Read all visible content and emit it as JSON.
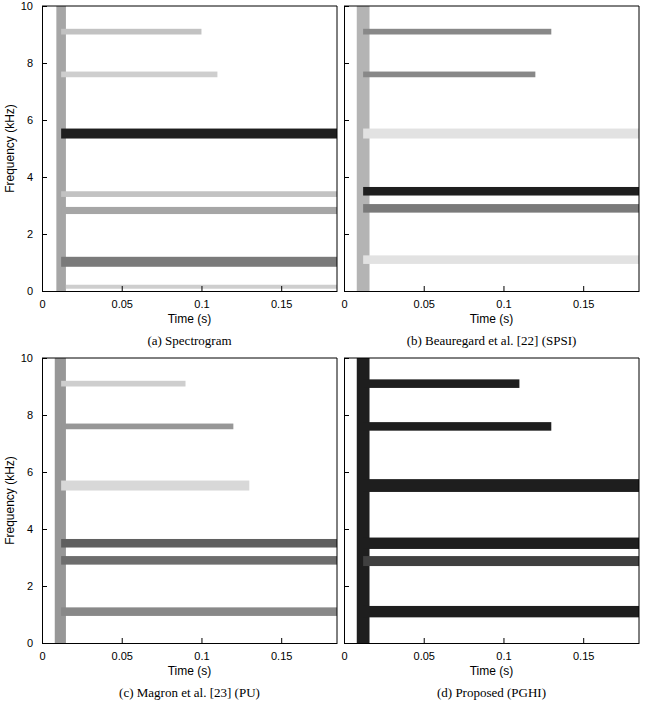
{
  "chart_data": [
    {
      "type": "spectrogram",
      "title": "(a) Spectrogram",
      "xlabel": "Time (s)",
      "ylabel": "Frequency (kHz)",
      "xlim": [
        0,
        0.185
      ],
      "ylim": [
        0,
        10
      ],
      "xticks": [
        0,
        0.05,
        0.1,
        0.15
      ],
      "yticks": [
        0,
        2,
        4,
        6,
        8,
        10
      ],
      "bands": [
        {
          "start": 0.009,
          "end": 0.015,
          "f0": 0,
          "f1": 10,
          "value": 0.45
        },
        {
          "start": 0.012,
          "end": 0.185,
          "f0": 0.85,
          "f1": 1.2,
          "value": 0.6
        },
        {
          "start": 0.012,
          "end": 0.185,
          "f0": 2.7,
          "f1": 2.95,
          "value": 0.45
        },
        {
          "start": 0.012,
          "end": 0.185,
          "f0": 3.3,
          "f1": 3.5,
          "value": 0.35
        },
        {
          "start": 0.012,
          "end": 0.185,
          "f0": 5.35,
          "f1": 5.7,
          "value": 0.9
        },
        {
          "start": 0.012,
          "end": 0.11,
          "f0": 7.5,
          "f1": 7.7,
          "value": 0.3
        },
        {
          "start": 0.012,
          "end": 0.1,
          "f0": 9.0,
          "f1": 9.2,
          "value": 0.35
        },
        {
          "start": 0.015,
          "end": 0.185,
          "f0": 0.08,
          "f1": 0.22,
          "value": 0.3
        }
      ]
    },
    {
      "type": "spectrogram",
      "title": "(b) Beauregard et al. [22] (SPSI)",
      "xlabel": "Time (s)",
      "xlim": [
        0,
        0.185
      ],
      "ylim": [
        0,
        10
      ],
      "xticks": [
        0,
        0.05,
        0.1,
        0.15
      ],
      "yticks": [
        0,
        2,
        4,
        6,
        8,
        10
      ],
      "tick_labels": "x",
      "bands": [
        {
          "start": 0.008,
          "end": 0.016,
          "f0": 0,
          "f1": 10,
          "value": 0.4
        },
        {
          "start": 0.012,
          "end": 0.185,
          "f0": 0.95,
          "f1": 1.25,
          "value": 0.2
        },
        {
          "start": 0.012,
          "end": 0.185,
          "f0": 2.75,
          "f1": 3.05,
          "value": 0.6
        },
        {
          "start": 0.012,
          "end": 0.185,
          "f0": 3.35,
          "f1": 3.65,
          "value": 0.9
        },
        {
          "start": 0.012,
          "end": 0.185,
          "f0": 5.35,
          "f1": 5.7,
          "value": 0.2
        },
        {
          "start": 0.012,
          "end": 0.12,
          "f0": 7.5,
          "f1": 7.7,
          "value": 0.55
        },
        {
          "start": 0.012,
          "end": 0.13,
          "f0": 9.0,
          "f1": 9.2,
          "value": 0.55
        }
      ]
    },
    {
      "type": "spectrogram",
      "title": "(c) Magron et al. [23] (PU)",
      "xlabel": "Time (s)",
      "ylabel": "Frequency (kHz)",
      "xlim": [
        0,
        0.185
      ],
      "ylim": [
        0,
        10
      ],
      "xticks": [
        0,
        0.05,
        0.1,
        0.15
      ],
      "yticks": [
        0,
        2,
        4,
        6,
        8,
        10
      ],
      "bands": [
        {
          "start": 0.008,
          "end": 0.015,
          "f0": 0,
          "f1": 10,
          "value": 0.5
        },
        {
          "start": 0.012,
          "end": 0.185,
          "f0": 0.95,
          "f1": 1.25,
          "value": 0.55
        },
        {
          "start": 0.012,
          "end": 0.185,
          "f0": 2.75,
          "f1": 3.05,
          "value": 0.65
        },
        {
          "start": 0.012,
          "end": 0.185,
          "f0": 3.35,
          "f1": 3.65,
          "value": 0.7
        },
        {
          "start": 0.012,
          "end": 0.13,
          "f0": 5.35,
          "f1": 5.7,
          "value": 0.25
        },
        {
          "start": 0.012,
          "end": 0.12,
          "f0": 7.5,
          "f1": 7.7,
          "value": 0.5
        },
        {
          "start": 0.012,
          "end": 0.09,
          "f0": 9.0,
          "f1": 9.2,
          "value": 0.3
        }
      ]
    },
    {
      "type": "spectrogram",
      "title": "(d) Proposed (PGHI)",
      "xlabel": "Time (s)",
      "xlim": [
        0,
        0.185
      ],
      "ylim": [
        0,
        10
      ],
      "xticks": [
        0,
        0.05,
        0.1,
        0.15
      ],
      "yticks": [
        0,
        2,
        4,
        6,
        8,
        10
      ],
      "tick_labels": "x",
      "bands": [
        {
          "start": 0.008,
          "end": 0.016,
          "f0": 0,
          "f1": 10,
          "value": 0.9
        },
        {
          "start": 0.012,
          "end": 0.185,
          "f0": 0.9,
          "f1": 1.3,
          "value": 0.9
        },
        {
          "start": 0.012,
          "end": 0.185,
          "f0": 2.7,
          "f1": 3.05,
          "value": 0.8
        },
        {
          "start": 0.012,
          "end": 0.185,
          "f0": 3.3,
          "f1": 3.7,
          "value": 0.9
        },
        {
          "start": 0.012,
          "end": 0.185,
          "f0": 5.3,
          "f1": 5.75,
          "value": 0.9
        },
        {
          "start": 0.012,
          "end": 0.13,
          "f0": 7.45,
          "f1": 7.75,
          "value": 0.9
        },
        {
          "start": 0.012,
          "end": 0.11,
          "f0": 8.95,
          "f1": 9.25,
          "value": 0.9
        }
      ]
    }
  ]
}
